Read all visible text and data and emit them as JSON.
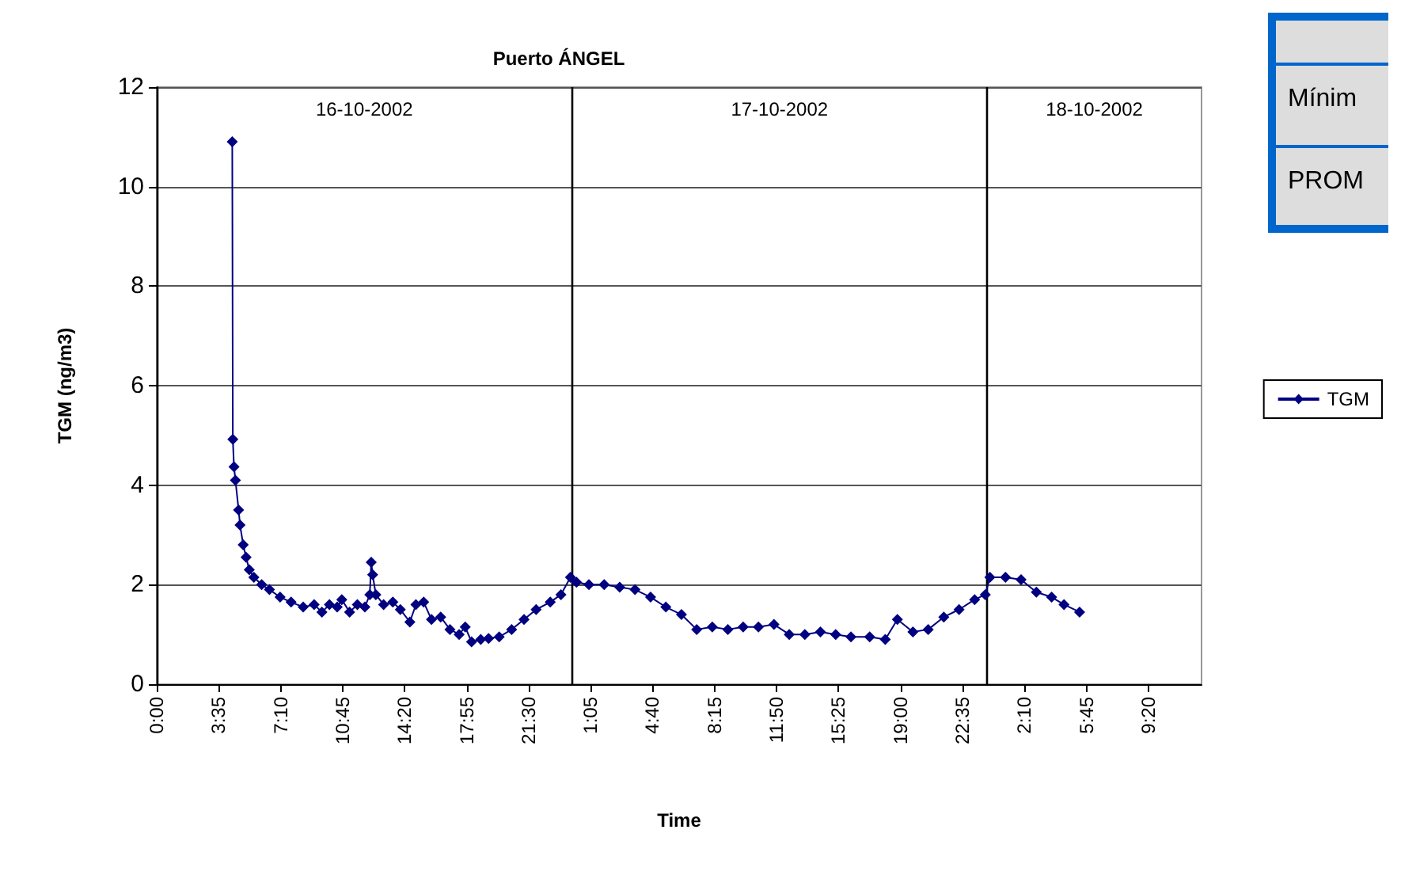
{
  "chart_data": {
    "type": "line",
    "title": "Puerto ÁNGEL",
    "xlabel": "Time",
    "ylabel": "TGM (ng/m3)",
    "x": [
      "2002-10-16T04:22",
      "2002-10-16T04:24",
      "2002-10-16T04:28",
      "2002-10-16T04:33",
      "2002-10-16T04:44",
      "2002-10-16T04:49",
      "2002-10-16T05:00",
      "2002-10-16T05:10",
      "2002-10-16T05:21",
      "2002-10-16T05:37",
      "2002-10-16T06:04",
      "2002-10-16T06:31",
      "2002-10-16T07:08",
      "2002-10-16T07:46",
      "2002-10-16T08:28",
      "2002-10-16T09:06",
      "2002-10-16T09:33",
      "2002-10-16T09:59",
      "2002-10-16T10:26",
      "2002-10-16T10:42",
      "2002-10-16T11:09",
      "2002-10-16T11:36",
      "2002-10-16T12:02",
      "2002-10-16T12:19",
      "2002-10-16T12:24",
      "2002-10-16T12:29",
      "2002-10-16T12:40",
      "2002-10-16T13:07",
      "2002-10-16T13:39",
      "2002-10-16T14:05",
      "2002-10-16T14:38",
      "2002-10-16T14:59",
      "2002-10-16T15:26",
      "2002-10-16T15:53",
      "2002-10-16T16:25",
      "2002-10-16T16:57",
      "2002-10-16T17:29",
      "2002-10-16T17:50",
      "2002-10-16T18:12",
      "2002-10-16T18:44",
      "2002-10-16T19:11",
      "2002-10-16T19:48",
      "2002-10-16T20:31",
      "2002-10-16T21:14",
      "2002-10-16T21:56",
      "2002-10-16T22:45",
      "2002-10-16T23:22",
      "2002-10-16T23:55",
      "2002-10-17T00:16",
      "2002-10-17T00:59",
      "2002-10-17T01:52",
      "2002-10-17T02:46",
      "2002-10-17T03:39",
      "2002-10-17T04:33",
      "2002-10-17T05:26",
      "2002-10-17T06:20",
      "2002-10-17T07:13",
      "2002-10-17T08:07",
      "2002-10-17T09:01",
      "2002-10-17T09:54",
      "2002-10-17T10:47",
      "2002-10-17T11:41",
      "2002-10-17T12:34",
      "2002-10-17T13:28",
      "2002-10-17T14:22",
      "2002-10-17T15:15",
      "2002-10-17T16:08",
      "2002-10-17T17:13",
      "2002-10-17T18:07",
      "2002-10-17T18:49",
      "2002-10-17T19:43",
      "2002-10-17T20:36",
      "2002-10-17T21:30",
      "2002-10-17T22:23",
      "2002-10-17T23:17",
      "2002-10-17T23:54",
      "2002-10-18T00:10",
      "2002-10-18T01:04",
      "2002-10-18T01:58",
      "2002-10-18T02:51",
      "2002-10-18T03:44",
      "2002-10-18T04:27",
      "2002-10-18T05:21"
    ],
    "series": [
      {
        "name": "TGM",
        "color": "#000080",
        "values": [
          10.9,
          4.92,
          4.37,
          4.1,
          3.5,
          3.2,
          2.8,
          2.55,
          2.3,
          2.15,
          2.0,
          1.9,
          1.75,
          1.65,
          1.55,
          1.6,
          1.45,
          1.6,
          1.55,
          1.7,
          1.45,
          1.6,
          1.55,
          1.8,
          2.45,
          2.2,
          1.8,
          1.6,
          1.65,
          1.5,
          1.25,
          1.6,
          1.65,
          1.3,
          1.35,
          1.1,
          1.0,
          1.15,
          0.85,
          0.9,
          0.92,
          0.95,
          1.1,
          1.3,
          1.5,
          1.65,
          1.8,
          2.15,
          2.05,
          2.0,
          2.0,
          1.95,
          1.9,
          1.75,
          1.55,
          1.4,
          1.1,
          1.15,
          1.1,
          1.15,
          1.15,
          1.2,
          1.0,
          1.0,
          1.05,
          1.0,
          0.95,
          0.95,
          0.9,
          1.3,
          1.05,
          1.1,
          1.35,
          1.5,
          1.7,
          1.8,
          2.15,
          2.15,
          2.1,
          1.85,
          1.75,
          1.6,
          1.45
        ]
      }
    ],
    "xlim": [
      "2002-10-16T00:00",
      "2002-10-18T12:24"
    ],
    "xticks": [
      {
        "value": "2002-10-16T00:00",
        "label": "0:00"
      },
      {
        "value": "2002-10-16T03:35",
        "label": "3:35"
      },
      {
        "value": "2002-10-16T07:10",
        "label": "7:10"
      },
      {
        "value": "2002-10-16T10:45",
        "label": "10:45"
      },
      {
        "value": "2002-10-16T14:20",
        "label": "14:20"
      },
      {
        "value": "2002-10-16T17:55",
        "label": "17:55"
      },
      {
        "value": "2002-10-16T21:30",
        "label": "21:30"
      },
      {
        "value": "2002-10-17T01:05",
        "label": "1:05"
      },
      {
        "value": "2002-10-17T04:40",
        "label": "4:40"
      },
      {
        "value": "2002-10-17T08:15",
        "label": "8:15"
      },
      {
        "value": "2002-10-17T11:50",
        "label": "11:50"
      },
      {
        "value": "2002-10-17T15:25",
        "label": "15:25"
      },
      {
        "value": "2002-10-17T19:00",
        "label": "19:00"
      },
      {
        "value": "2002-10-17T22:35",
        "label": "22:35"
      },
      {
        "value": "2002-10-18T02:10",
        "label": "2:10"
      },
      {
        "value": "2002-10-18T05:45",
        "label": "5:45"
      },
      {
        "value": "2002-10-18T09:20",
        "label": "9:20"
      }
    ],
    "ylim": [
      0,
      12
    ],
    "yticks": [
      0,
      2,
      4,
      6,
      8,
      10,
      12
    ],
    "ref_lines": [
      {
        "axis": "x",
        "value": "2002-10-16T00:00",
        "label": "16-10-2002"
      },
      {
        "axis": "x",
        "value": "2002-10-17T00:00",
        "label": "17-10-2002"
      },
      {
        "axis": "x",
        "value": "2002-10-18T00:00",
        "label": "18-10-2002"
      }
    ],
    "annotations": [
      "Mínim",
      "PROM"
    ],
    "grid": "y",
    "legend": "right",
    "marker": "diamond",
    "line_style": "solid"
  }
}
